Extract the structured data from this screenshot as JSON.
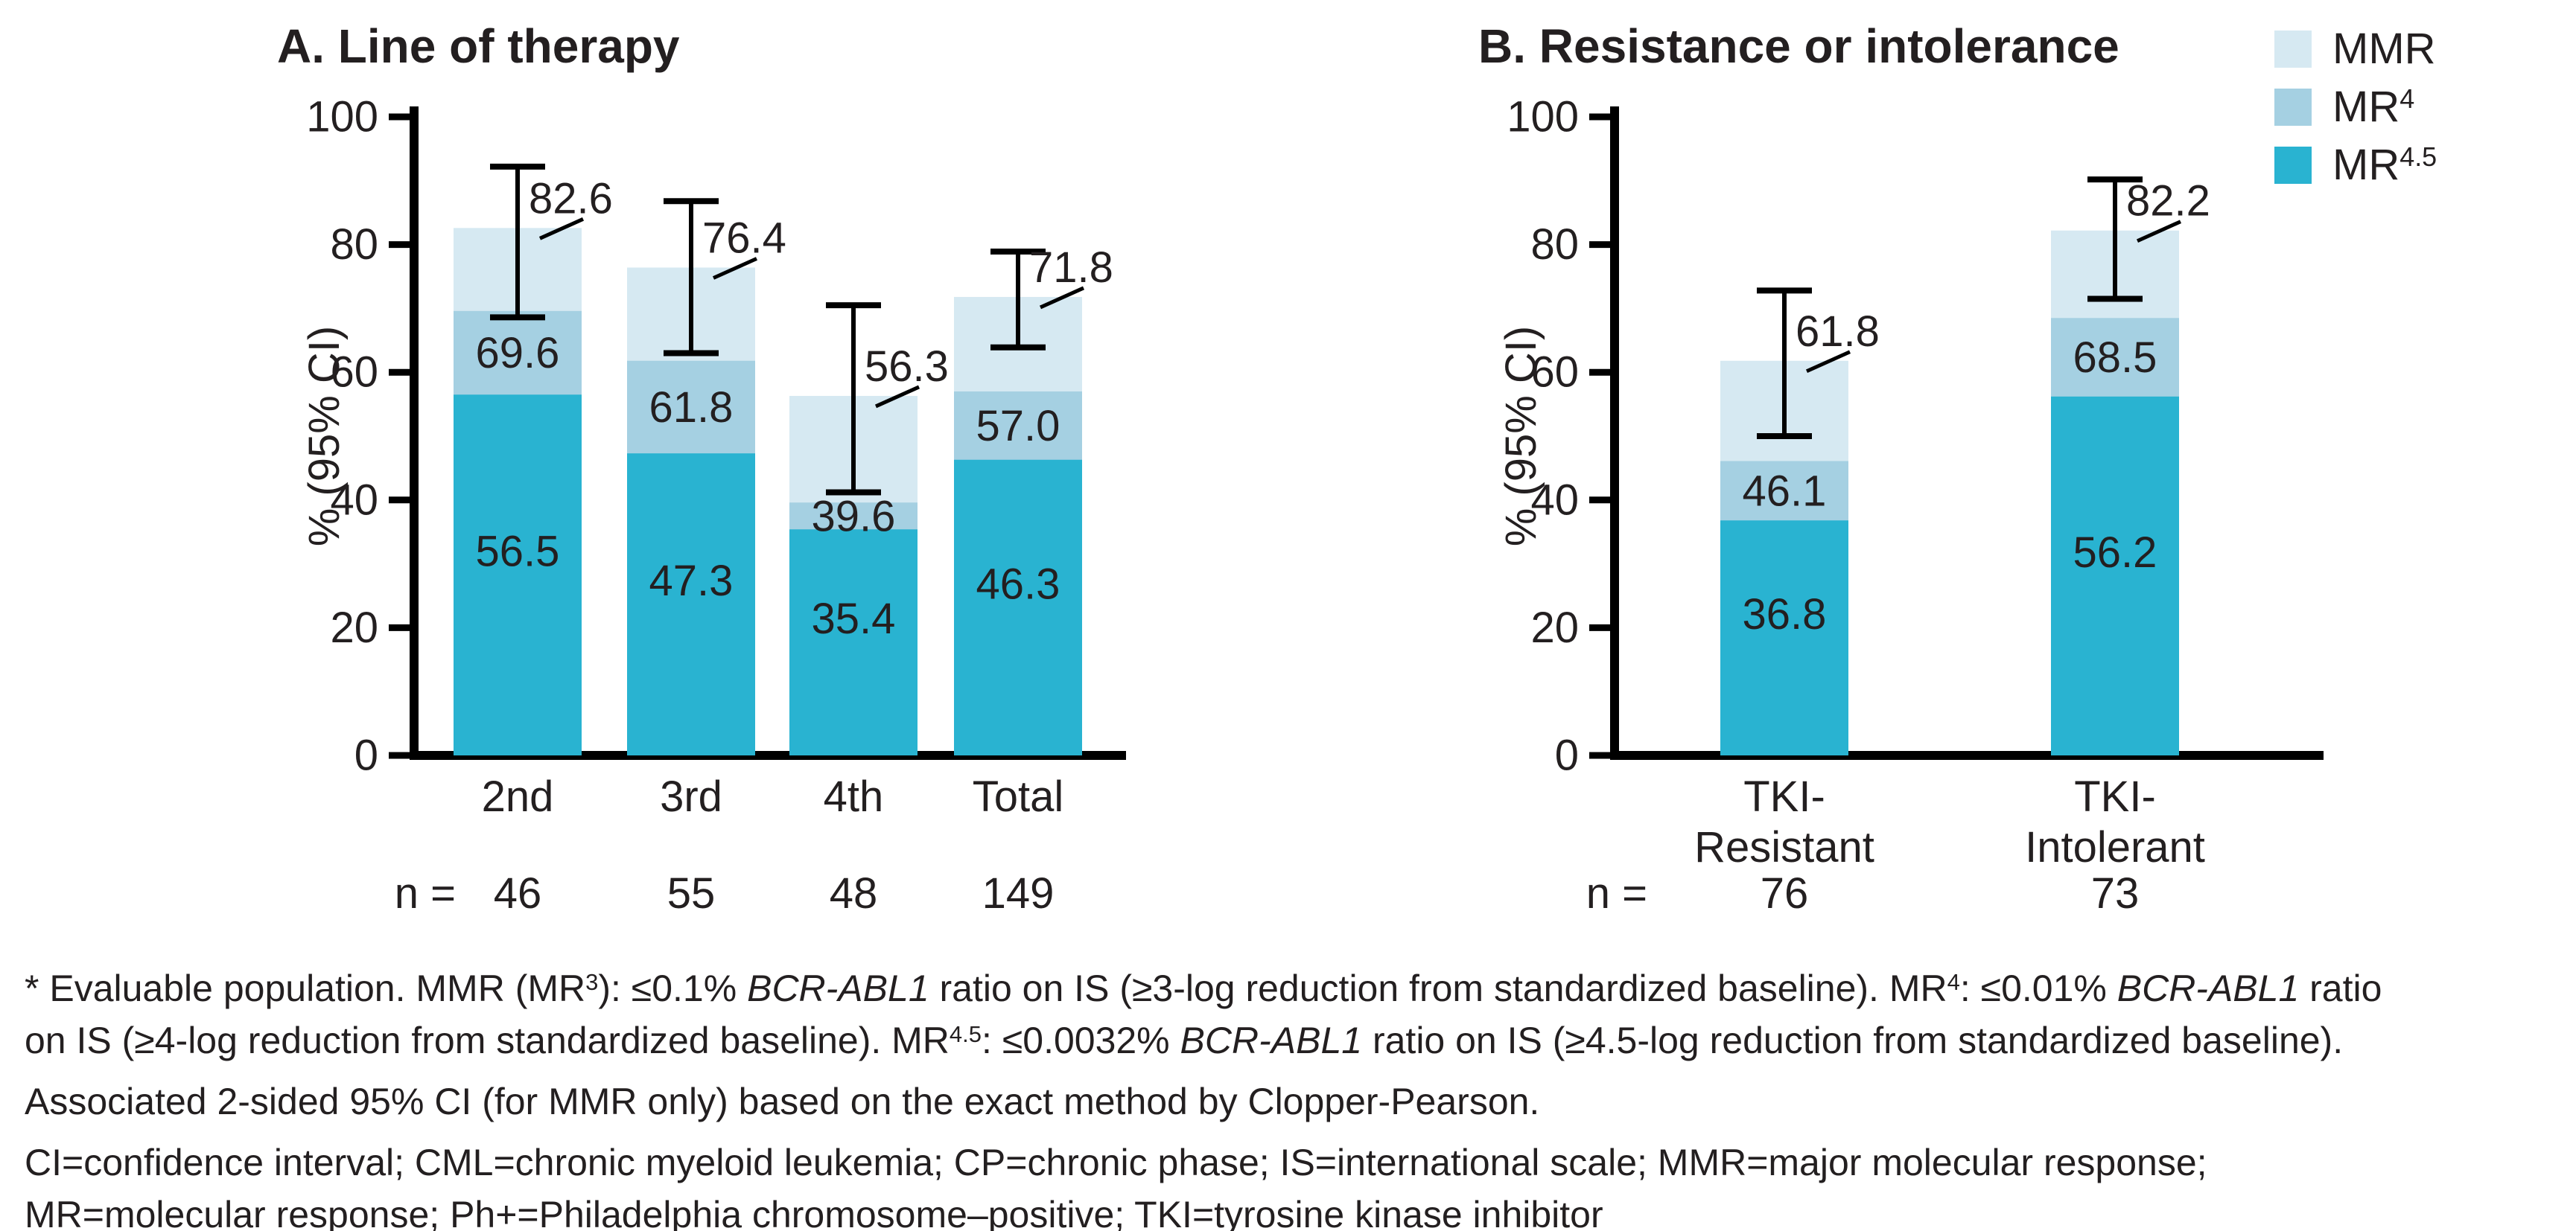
{
  "figure": {
    "background": "#ffffff",
    "text_color": "#231f20",
    "axis_color": "#000000"
  },
  "legend": {
    "position": "top-right",
    "items": [
      {
        "key": "mmr",
        "label": "MMR",
        "label_runs": [
          {
            "t": "MMR"
          }
        ],
        "color": "#d6e9f2"
      },
      {
        "key": "mr4",
        "label": "MR4",
        "label_runs": [
          {
            "t": "MR"
          },
          {
            "t": "4",
            "style": "sup"
          }
        ],
        "color": "#a5d0e2"
      },
      {
        "key": "mr45",
        "label": "MR4.5",
        "label_runs": [
          {
            "t": "MR"
          },
          {
            "t": "4.5",
            "style": "sup"
          }
        ],
        "color": "#29b3d1"
      }
    ]
  },
  "chart_data": [
    {
      "type": "bar",
      "stacking": "overlaid-cumulative",
      "title": "A. Line of therapy",
      "xlabel": "",
      "ylabel": "% (95% CI)",
      "ylim": [
        0,
        100
      ],
      "yticks": [
        0,
        20,
        40,
        60,
        80,
        100
      ],
      "grid": false,
      "categories": [
        "2nd",
        "3rd",
        "4th",
        "Total"
      ],
      "category_label_lines": [
        [
          "2nd"
        ],
        [
          "3rd"
        ],
        [
          "4th"
        ],
        [
          "Total"
        ]
      ],
      "n_prefix": "n =",
      "n_values": [
        "46",
        "55",
        "48",
        "149"
      ],
      "series": [
        {
          "name": "MMR",
          "color": "#d6e9f2",
          "values": [
            82.6,
            76.4,
            56.3,
            71.8
          ],
          "labels": [
            "82.6",
            "76.4",
            "56.3",
            "71.8"
          ]
        },
        {
          "name": "MR4",
          "color": "#a5d0e2",
          "values": [
            69.6,
            61.8,
            39.6,
            57.0
          ],
          "labels": [
            "69.6",
            "61.8",
            "39.6",
            "57.0"
          ]
        },
        {
          "name": "MR4.5",
          "color": "#29b3d1",
          "values": [
            56.5,
            47.3,
            35.4,
            46.3
          ],
          "labels": [
            "56.5",
            "47.3",
            "35.4",
            "46.3"
          ]
        }
      ],
      "error_bars": {
        "applies_to": "MMR",
        "low": [
          68.6,
          63.0,
          41.2,
          63.9
        ],
        "high": [
          92.2,
          86.8,
          70.5,
          78.9
        ]
      }
    },
    {
      "type": "bar",
      "stacking": "overlaid-cumulative",
      "title": "B. Resistance or intolerance",
      "xlabel": "",
      "ylabel": "% (95% CI)",
      "ylim": [
        0,
        100
      ],
      "yticks": [
        0,
        20,
        40,
        60,
        80,
        100
      ],
      "grid": false,
      "categories": [
        "TKI-Resistant",
        "TKI-Intolerant"
      ],
      "category_label_lines": [
        [
          "TKI-",
          "Resistant"
        ],
        [
          "TKI-",
          "Intolerant"
        ]
      ],
      "n_prefix": "n =",
      "n_values": [
        "76",
        "73"
      ],
      "series": [
        {
          "name": "MMR",
          "color": "#d6e9f2",
          "values": [
            61.8,
            82.2
          ],
          "labels": [
            "61.8",
            "82.2"
          ]
        },
        {
          "name": "MR4",
          "color": "#a5d0e2",
          "values": [
            46.1,
            68.5
          ],
          "labels": [
            "46.1",
            "68.5"
          ]
        },
        {
          "name": "MR4.5",
          "color": "#29b3d1",
          "values": [
            36.8,
            56.2
          ],
          "labels": [
            "36.8",
            "56.2"
          ]
        }
      ],
      "error_bars": {
        "applies_to": "MMR",
        "low": [
          50.0,
          71.5
        ],
        "high": [
          72.8,
          90.2
        ]
      }
    }
  ],
  "footnotes": {
    "paragraphs": [
      {
        "lines": [
          [
            {
              "t": "* Evaluable population. MMR (MR"
            },
            {
              "t": "3",
              "style": "sup"
            },
            {
              "t": "): ≤0.1% "
            },
            {
              "t": "BCR-ABL1",
              "style": "i"
            },
            {
              "t": " ratio on IS (≥3-log reduction from standardized baseline). MR"
            },
            {
              "t": "4",
              "style": "sup"
            },
            {
              "t": ": ≤0.01% "
            },
            {
              "t": "BCR-ABL1",
              "style": "i"
            },
            {
              "t": " ratio"
            }
          ],
          [
            {
              "t": "on IS (≥4-log reduction from standardized baseline). MR"
            },
            {
              "t": "4.5",
              "style": "sup"
            },
            {
              "t": ": ≤0.0032% "
            },
            {
              "t": "BCR-ABL1",
              "style": "i"
            },
            {
              "t": " ratio on IS (≥4.5-log reduction from standardized baseline)."
            }
          ]
        ]
      },
      {
        "lines": [
          [
            {
              "t": "Associated 2-sided 95% CI (for MMR only) based on the exact method by Clopper-Pearson."
            }
          ]
        ]
      },
      {
        "lines": [
          [
            {
              "t": "CI=confidence interval; CML=chronic myeloid leukemia; CP=chronic phase; IS=international scale; MMR=major molecular response;"
            }
          ],
          [
            {
              "t": "MR=molecular response; Ph+=Philadelphia chromosome–positive; TKI=tyrosine kinase inhibitor"
            }
          ]
        ]
      }
    ]
  }
}
